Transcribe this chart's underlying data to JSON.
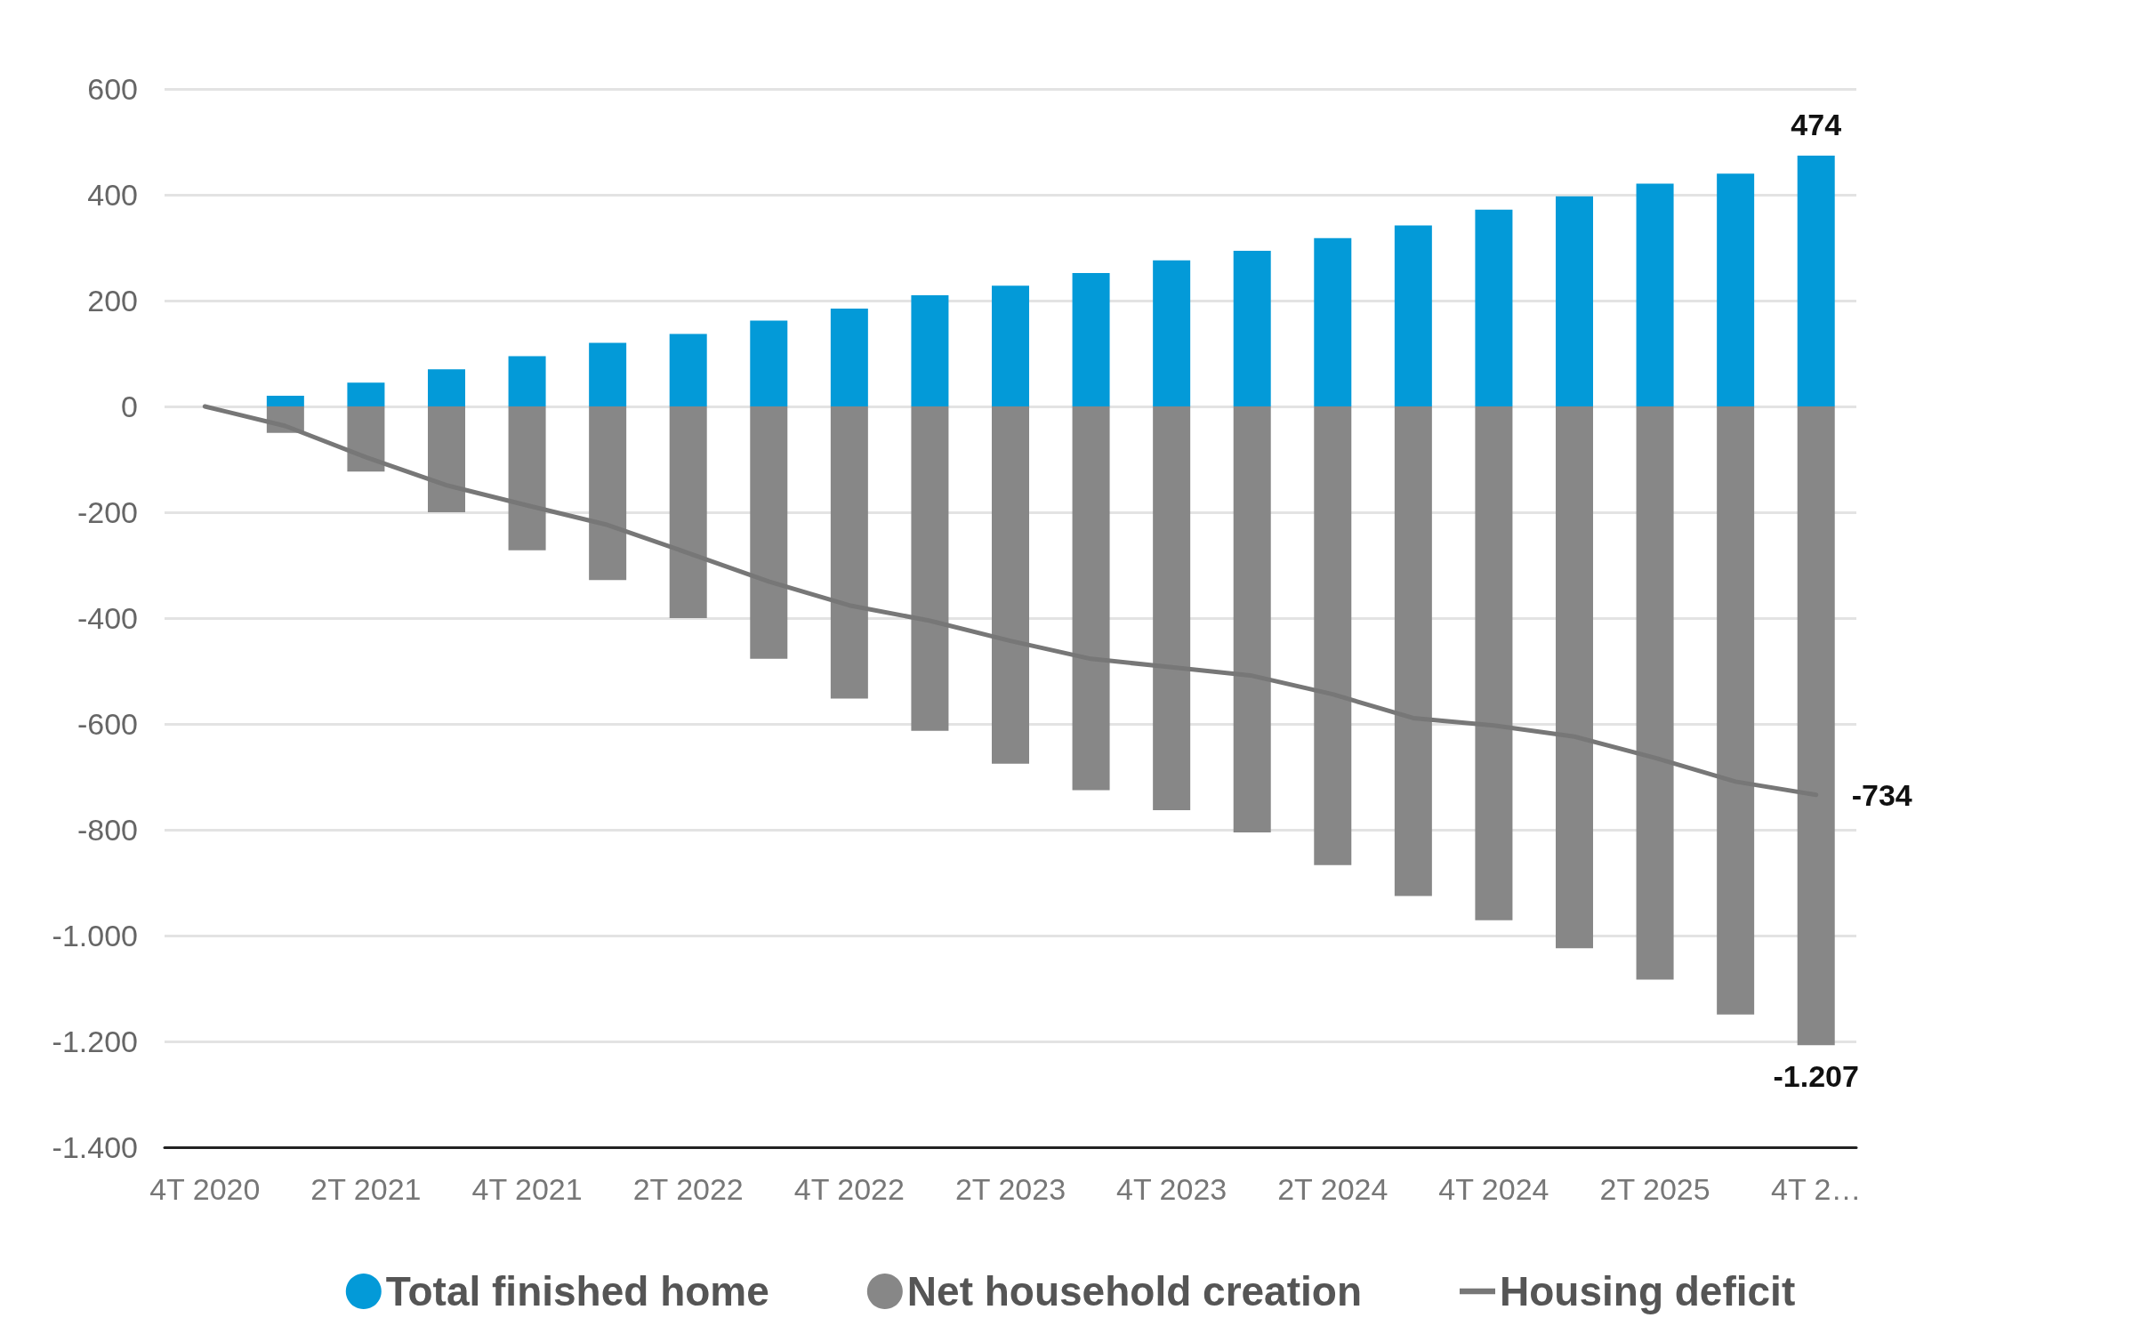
{
  "chart_data": {
    "type": "bar",
    "stacked": true,
    "categories": [
      "4T 2020",
      null,
      "2T 2021",
      null,
      "4T 2021",
      null,
      "2T 2022",
      null,
      "4T 2022",
      null,
      "2T 2023",
      null,
      "4T 2023",
      null,
      "2T 2024",
      null,
      "4T 2024",
      null,
      "2T 2025",
      null,
      "4T 2…"
    ],
    "series": [
      {
        "name": "Total finished home",
        "color": "#039ad8",
        "values": [
          null,
          20,
          45,
          70,
          95,
          120,
          137,
          162,
          185,
          210,
          228,
          252,
          276,
          294,
          318,
          342,
          372,
          397,
          421,
          440,
          474
        ],
        "value_labels": [
          null,
          null,
          null,
          null,
          null,
          null,
          null,
          null,
          null,
          null,
          null,
          null,
          null,
          null,
          null,
          null,
          null,
          null,
          null,
          null,
          "474"
        ]
      },
      {
        "name": "Net household creation",
        "color": "#878787",
        "values": [
          null,
          -50,
          -123,
          -200,
          -272,
          -328,
          -400,
          -477,
          -552,
          -613,
          -675,
          -725,
          -763,
          -805,
          -867,
          -925,
          -971,
          -1024,
          -1083,
          -1149,
          -1207
        ],
        "value_labels": [
          null,
          null,
          null,
          null,
          null,
          null,
          null,
          null,
          null,
          null,
          null,
          null,
          null,
          null,
          null,
          null,
          null,
          null,
          null,
          null,
          "-1.207"
        ]
      },
      {
        "name": "Housing deficit",
        "type": "line",
        "color": "#777777",
        "values": [
          0,
          -37,
          -96,
          -149,
          -187,
          -224,
          -277,
          -331,
          -376,
          -405,
          -443,
          -477,
          -493,
          -509,
          -544,
          -589,
          -603,
          -624,
          -664,
          -709,
          -734
        ],
        "value_labels": [
          null,
          null,
          null,
          null,
          null,
          null,
          null,
          null,
          null,
          null,
          null,
          null,
          null,
          null,
          null,
          null,
          null,
          null,
          null,
          null,
          "-734"
        ]
      }
    ],
    "ylim": [
      -1400,
      600
    ],
    "yticks": [
      {
        "value": -1400,
        "label": "-1.400"
      },
      {
        "value": -1200,
        "label": "-1.200"
      },
      {
        "value": -1000,
        "label": "-1.000"
      },
      -800,
      -600,
      -400,
      -200,
      0,
      200,
      400,
      600
    ],
    "grid": "y",
    "legend": "bottom",
    "marker": "none",
    "line_style": "solid"
  }
}
